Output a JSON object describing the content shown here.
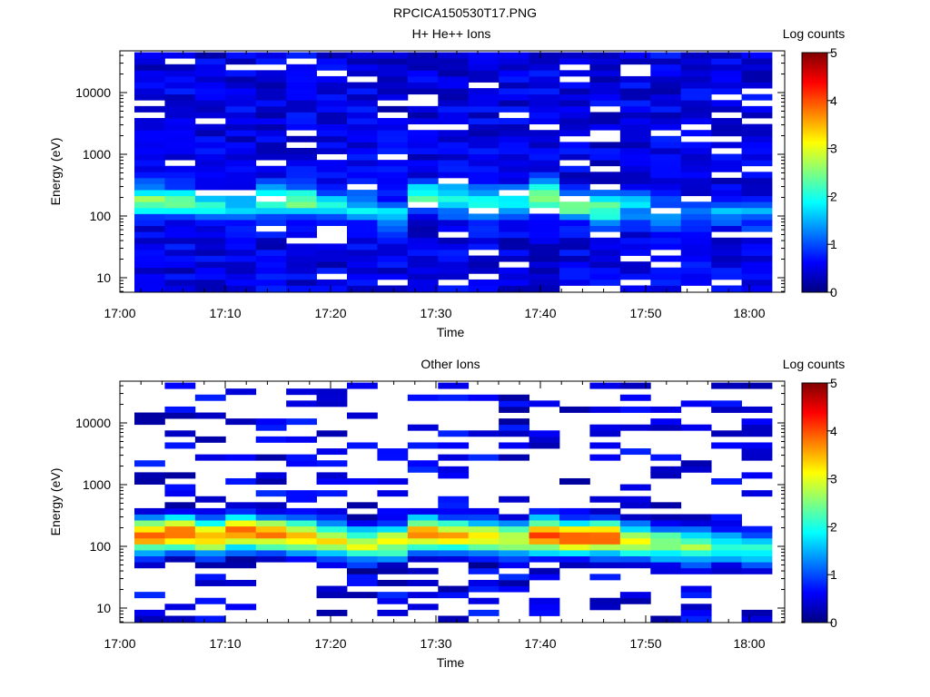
{
  "page": {
    "title": "RPCICA150530T17.PNG"
  },
  "chart_data": [
    {
      "type": "heatmap",
      "title": "H+ He++ Ions",
      "xlabel": "Time",
      "ylabel": "Energy (eV)",
      "x_ticks": [
        "17:00",
        "17:10",
        "17:20",
        "17:30",
        "17:40",
        "17:50",
        "18:00"
      ],
      "y_ticks": [
        "10",
        "100",
        "1000",
        "10000"
      ],
      "y_scale": "log",
      "colorbar": {
        "label": "Log counts",
        "ticks": [
          "0",
          "1",
          "2",
          "3",
          "4",
          "5"
        ],
        "range": [
          0,
          5
        ]
      },
      "time_bins": [
        "17:01:30",
        "17:04:30",
        "17:07:30",
        "17:10:30",
        "17:13:30",
        "17:16:30",
        "17:19:30",
        "17:22:30",
        "17:25:30",
        "17:28:30",
        "17:31:30",
        "17:34:30",
        "17:37:30",
        "17:40:30",
        "17:43:30",
        "17:46:30",
        "17:49:30",
        "17:52:30",
        "17:55:30",
        "17:58:30",
        "18:01:30"
      ],
      "peak_energy_ev": [
        180,
        170,
        150,
        140,
        190,
        170,
        150,
        130,
        110,
        200,
        190,
        160,
        170,
        200,
        150,
        130,
        150,
        110,
        100,
        120,
        110
      ],
      "peak_log_counts": [
        2.0,
        2.1,
        1.5,
        1.3,
        2.0,
        1.9,
        1.5,
        1.2,
        1.1,
        1.8,
        1.6,
        1.5,
        1.3,
        2.2,
        1.9,
        1.8,
        1.0,
        1.0,
        0.6,
        0.9,
        0.8
      ],
      "background_log_counts": 0.5
    },
    {
      "type": "heatmap",
      "title": "Other Ions",
      "xlabel": "Time",
      "ylabel": "Energy (eV)",
      "x_ticks": [
        "17:00",
        "17:10",
        "17:20",
        "17:30",
        "17:40",
        "17:50",
        "18:00"
      ],
      "y_ticks": [
        "10",
        "100",
        "1000",
        "10000"
      ],
      "y_scale": "log",
      "colorbar": {
        "label": "Log counts",
        "ticks": [
          "0",
          "1",
          "2",
          "3",
          "4",
          "5"
        ],
        "range": [
          0,
          5
        ]
      },
      "time_bins": [
        "17:01:30",
        "17:04:30",
        "17:07:30",
        "17:10:30",
        "17:13:30",
        "17:16:30",
        "17:19:30",
        "17:22:30",
        "17:25:30",
        "17:28:30",
        "17:31:30",
        "17:34:30",
        "17:37:30",
        "17:40:30",
        "17:43:30",
        "17:46:30",
        "17:49:30",
        "17:52:30",
        "17:55:30",
        "17:58:30",
        "18:01:30"
      ],
      "peak_energy_ev": [
        150,
        160,
        140,
        170,
        160,
        150,
        130,
        110,
        120,
        160,
        150,
        140,
        130,
        150,
        140,
        140,
        120,
        110,
        100,
        100,
        90
      ],
      "peak_log_counts": [
        3.8,
        3.9,
        3.5,
        3.9,
        3.7,
        3.4,
        3.1,
        3.0,
        3.0,
        3.5,
        3.4,
        3.2,
        3.0,
        4.1,
        3.9,
        3.8,
        2.9,
        2.7,
        2.6,
        2.0,
        1.9
      ],
      "background_log_counts": 0.3
    }
  ]
}
